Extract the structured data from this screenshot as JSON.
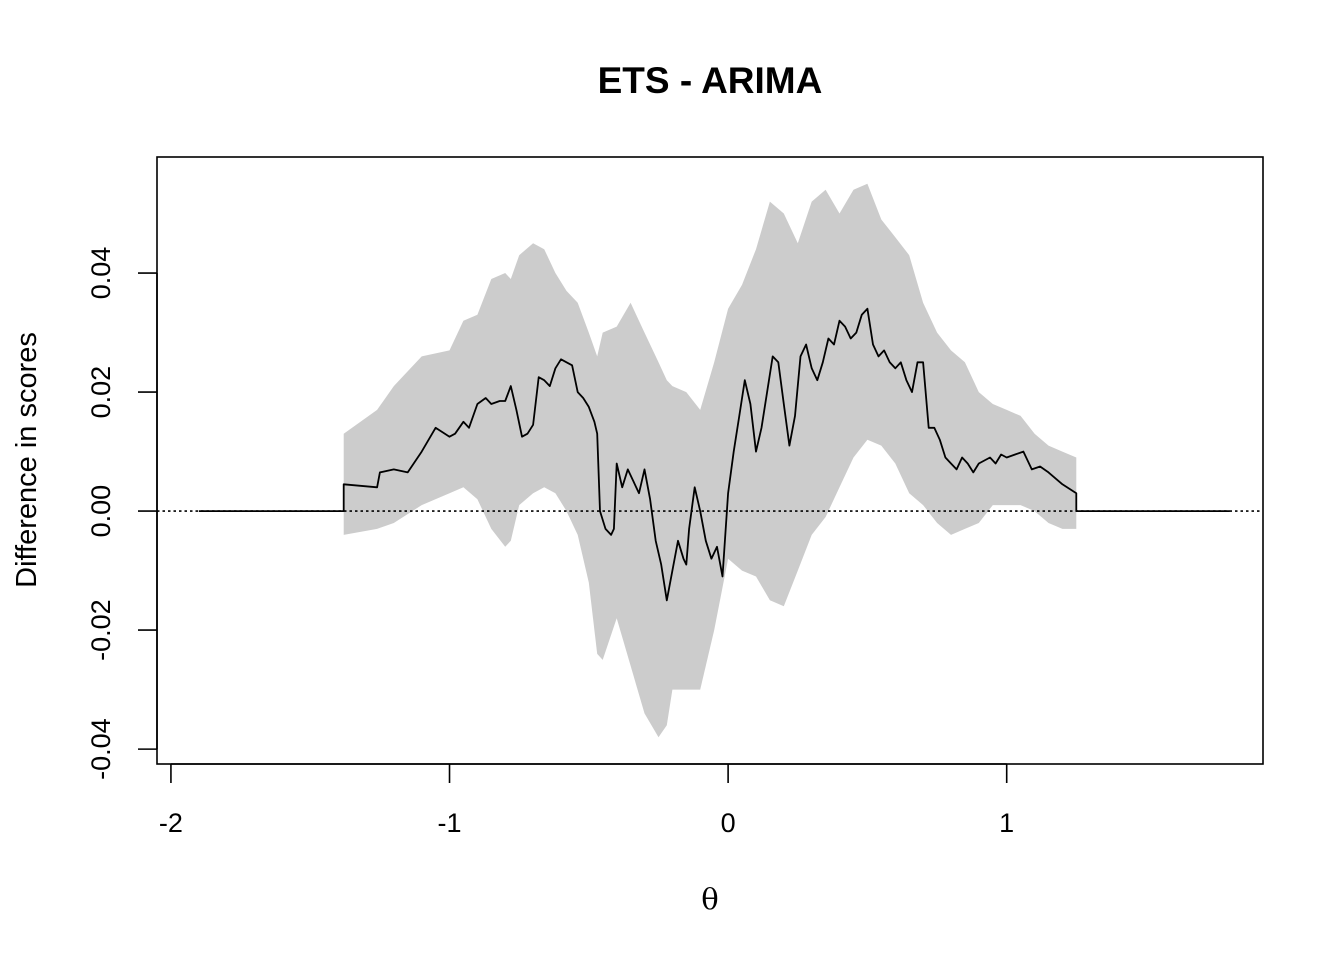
{
  "chart_data": {
    "type": "line",
    "title": "ETS - ARIMA",
    "xlabel": "θ",
    "ylabel": "Difference in scores",
    "xlim": [
      -2.05,
      1.92
    ],
    "ylim": [
      -0.0425,
      0.0595
    ],
    "x_ticks": [
      -2,
      -1,
      0,
      1
    ],
    "x_tick_labels": [
      "-2",
      "-1",
      "0",
      "1"
    ],
    "y_ticks": [
      -0.04,
      -0.02,
      0.0,
      0.02,
      0.04
    ],
    "y_tick_labels": [
      "-0.04",
      "-0.02",
      "0.00",
      "0.02",
      "0.04"
    ],
    "reference_line": {
      "y": 0,
      "style": "dotted"
    },
    "colors": {
      "line": "#000000",
      "band": "#cccccc",
      "axis": "#000000"
    },
    "series": [
      {
        "kind": "band",
        "x": [
          -1.38,
          -1.26,
          -1.2,
          -1.1,
          -1.0,
          -0.95,
          -0.9,
          -0.85,
          -0.8,
          -0.78,
          -0.75,
          -0.7,
          -0.66,
          -0.62,
          -0.58,
          -0.54,
          -0.5,
          -0.47,
          -0.45,
          -0.4,
          -0.35,
          -0.3,
          -0.25,
          -0.22,
          -0.2,
          -0.15,
          -0.1,
          -0.05,
          0.0,
          0.05,
          0.1,
          0.15,
          0.2,
          0.25,
          0.3,
          0.35,
          0.4,
          0.45,
          0.5,
          0.55,
          0.6,
          0.65,
          0.7,
          0.75,
          0.8,
          0.85,
          0.9,
          0.95,
          1.0,
          1.05,
          1.1,
          1.15,
          1.2,
          1.25
        ],
        "lower": [
          -0.004,
          -0.003,
          -0.002,
          0.001,
          0.003,
          0.004,
          0.002,
          -0.003,
          -0.006,
          -0.005,
          0.001,
          0.003,
          0.004,
          0.003,
          0.0,
          -0.004,
          -0.012,
          -0.024,
          -0.025,
          -0.018,
          -0.026,
          -0.034,
          -0.038,
          -0.036,
          -0.03,
          -0.03,
          -0.03,
          -0.02,
          -0.008,
          -0.01,
          -0.011,
          -0.015,
          -0.016,
          -0.01,
          -0.004,
          -0.001,
          0.004,
          0.009,
          0.012,
          0.011,
          0.008,
          0.003,
          0.001,
          -0.002,
          -0.004,
          -0.003,
          -0.002,
          0.001,
          0.001,
          0.001,
          0.0,
          -0.002,
          -0.003,
          -0.003
        ],
        "upper": [
          0.013,
          0.017,
          0.021,
          0.026,
          0.027,
          0.032,
          0.033,
          0.039,
          0.04,
          0.039,
          0.043,
          0.045,
          0.044,
          0.04,
          0.037,
          0.035,
          0.03,
          0.026,
          0.03,
          0.031,
          0.035,
          0.03,
          0.025,
          0.022,
          0.021,
          0.02,
          0.017,
          0.025,
          0.034,
          0.038,
          0.044,
          0.052,
          0.05,
          0.045,
          0.052,
          0.054,
          0.05,
          0.054,
          0.055,
          0.049,
          0.046,
          0.043,
          0.035,
          0.03,
          0.027,
          0.025,
          0.02,
          0.018,
          0.017,
          0.016,
          0.013,
          0.011,
          0.01,
          0.009
        ]
      },
      {
        "kind": "line",
        "x": [
          -1.9,
          -1.38,
          -1.38,
          -1.26,
          -1.25,
          -1.2,
          -1.15,
          -1.1,
          -1.05,
          -1.0,
          -0.98,
          -0.95,
          -0.93,
          -0.9,
          -0.87,
          -0.85,
          -0.82,
          -0.8,
          -0.78,
          -0.76,
          -0.74,
          -0.72,
          -0.7,
          -0.68,
          -0.66,
          -0.64,
          -0.62,
          -0.6,
          -0.58,
          -0.56,
          -0.54,
          -0.52,
          -0.5,
          -0.48,
          -0.47,
          -0.46,
          -0.44,
          -0.42,
          -0.41,
          -0.4,
          -0.38,
          -0.36,
          -0.34,
          -0.32,
          -0.3,
          -0.28,
          -0.26,
          -0.24,
          -0.22,
          -0.2,
          -0.18,
          -0.16,
          -0.15,
          -0.14,
          -0.12,
          -0.1,
          -0.08,
          -0.06,
          -0.04,
          -0.02,
          0.0,
          0.02,
          0.04,
          0.06,
          0.08,
          0.1,
          0.12,
          0.14,
          0.16,
          0.18,
          0.2,
          0.22,
          0.24,
          0.26,
          0.28,
          0.3,
          0.32,
          0.34,
          0.36,
          0.38,
          0.4,
          0.42,
          0.44,
          0.46,
          0.48,
          0.5,
          0.52,
          0.54,
          0.56,
          0.58,
          0.6,
          0.62,
          0.64,
          0.66,
          0.68,
          0.7,
          0.72,
          0.74,
          0.76,
          0.78,
          0.8,
          0.82,
          0.84,
          0.86,
          0.88,
          0.9,
          0.92,
          0.94,
          0.96,
          0.98,
          1.0,
          1.03,
          1.06,
          1.09,
          1.12,
          1.15,
          1.2,
          1.25,
          1.25,
          1.8
        ],
        "y": [
          0.0,
          0.0,
          0.0045,
          0.004,
          0.0065,
          0.007,
          0.0065,
          0.01,
          0.014,
          0.0125,
          0.013,
          0.015,
          0.014,
          0.018,
          0.019,
          0.018,
          0.0185,
          0.0185,
          0.021,
          0.017,
          0.0125,
          0.013,
          0.0145,
          0.0225,
          0.022,
          0.021,
          0.024,
          0.0255,
          0.025,
          0.0245,
          0.02,
          0.019,
          0.0175,
          0.015,
          0.013,
          0.0,
          -0.003,
          -0.004,
          -0.003,
          0.008,
          0.004,
          0.007,
          0.005,
          0.003,
          0.007,
          0.002,
          -0.005,
          -0.009,
          -0.015,
          -0.01,
          -0.005,
          -0.008,
          -0.009,
          -0.003,
          0.004,
          0.0,
          -0.005,
          -0.008,
          -0.006,
          -0.011,
          0.003,
          0.01,
          0.016,
          0.022,
          0.018,
          0.01,
          0.014,
          0.02,
          0.026,
          0.025,
          0.018,
          0.011,
          0.016,
          0.026,
          0.028,
          0.024,
          0.022,
          0.025,
          0.029,
          0.028,
          0.032,
          0.031,
          0.029,
          0.03,
          0.033,
          0.034,
          0.028,
          0.026,
          0.027,
          0.025,
          0.024,
          0.025,
          0.022,
          0.02,
          0.025,
          0.025,
          0.014,
          0.014,
          0.012,
          0.009,
          0.008,
          0.007,
          0.009,
          0.008,
          0.0065,
          0.008,
          0.0085,
          0.009,
          0.008,
          0.0095,
          0.009,
          0.0095,
          0.01,
          0.007,
          0.0075,
          0.0065,
          0.0045,
          0.003,
          0.0,
          0.0
        ]
      }
    ]
  }
}
